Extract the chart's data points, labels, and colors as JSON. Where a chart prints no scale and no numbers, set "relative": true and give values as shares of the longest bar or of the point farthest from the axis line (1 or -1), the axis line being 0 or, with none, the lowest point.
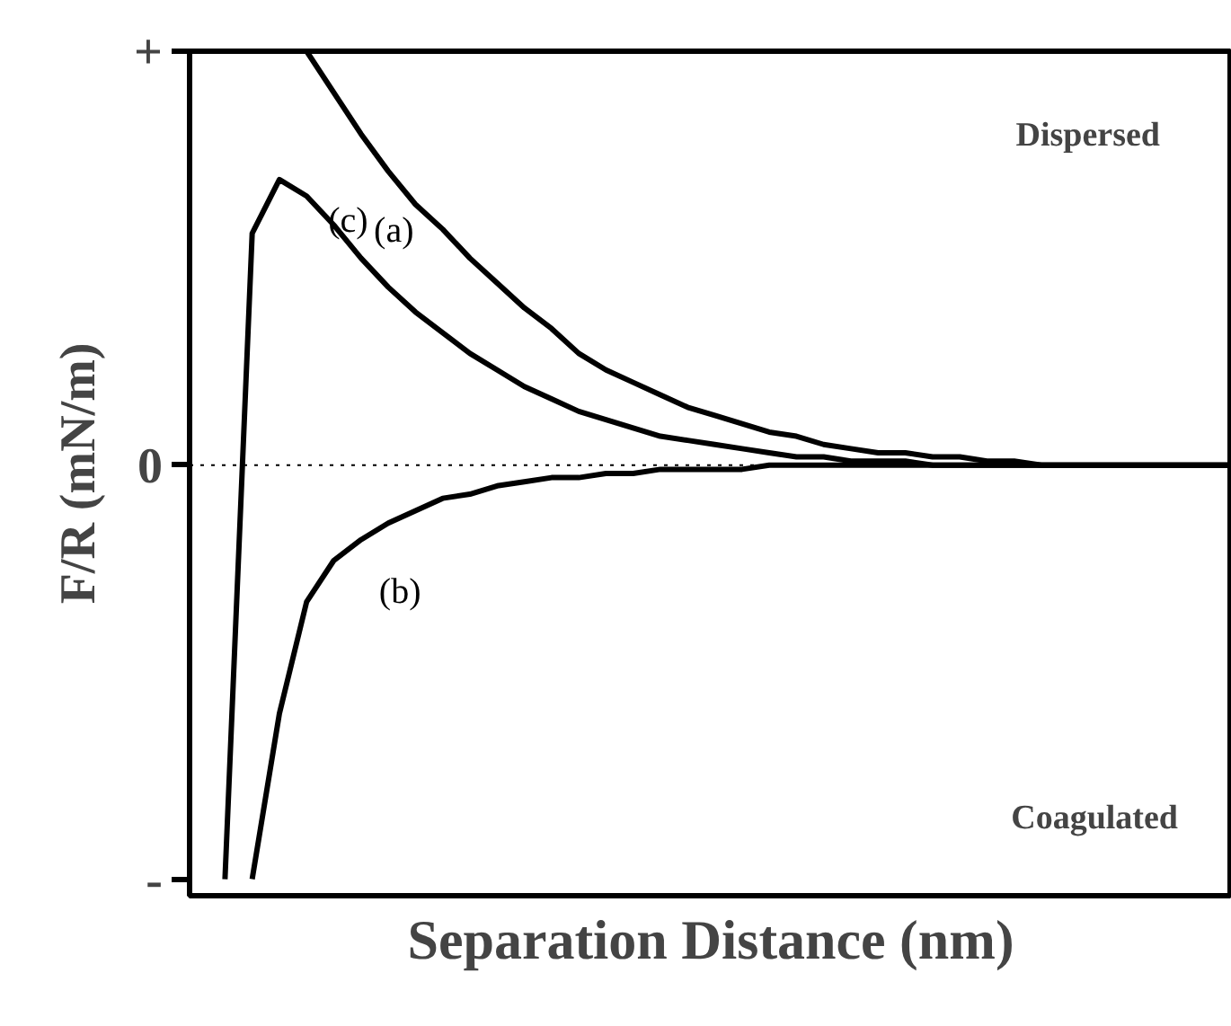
{
  "chart_data": {
    "type": "line",
    "relative": true,
    "xlabel": "Separation Distance (nm)",
    "ylabel": "F/R (mN/m)",
    "categories": [
      null,
      null,
      null,
      null,
      null,
      null,
      null,
      null,
      null,
      null,
      null,
      null,
      null,
      null,
      null,
      null,
      null,
      null,
      null,
      null,
      null,
      null,
      null,
      null,
      null,
      null,
      null,
      null,
      null,
      null,
      null,
      null,
      null,
      null,
      null,
      null,
      null,
      null,
      null
    ],
    "series": [
      {
        "name": "(a)",
        "color": "#000000",
        "values": [
          null,
          null,
          null,
          null,
          1.0,
          0.9,
          0.8,
          0.71,
          0.63,
          0.57,
          0.5,
          0.44,
          0.38,
          0.33,
          0.27,
          0.23,
          0.2,
          0.17,
          0.14,
          0.12,
          0.1,
          0.08,
          0.07,
          0.05,
          0.04,
          0.03,
          0.03,
          0.02,
          0.02,
          0.01,
          0.01,
          0,
          0,
          0,
          0,
          0,
          0,
          0,
          0
        ]
      },
      {
        "name": "(b)",
        "color": "#000000",
        "values": [
          null,
          null,
          -1.0,
          -0.6,
          -0.33,
          -0.23,
          -0.18,
          -0.14,
          -0.11,
          -0.08,
          -0.07,
          -0.05,
          -0.04,
          -0.03,
          -0.03,
          -0.02,
          -0.02,
          -0.01,
          -0.01,
          -0.01,
          -0.01,
          0,
          0,
          0,
          0,
          0,
          0,
          0,
          0,
          0,
          0,
          0,
          0,
          0,
          0,
          0,
          0,
          0,
          0
        ]
      },
      {
        "name": "(c)",
        "color": "#000000",
        "values": [
          null,
          -1.0,
          0.56,
          0.69,
          0.65,
          0.58,
          0.5,
          0.43,
          0.37,
          0.32,
          0.27,
          0.23,
          0.19,
          0.16,
          0.13,
          0.11,
          0.09,
          0.07,
          0.06,
          0.05,
          0.04,
          0.03,
          0.02,
          0.02,
          0.01,
          0.01,
          0.01,
          0,
          0,
          0,
          0,
          0,
          0,
          0,
          0,
          0,
          0,
          0,
          0
        ]
      }
    ],
    "ref_lines": [
      {
        "axis": "y",
        "value": 0,
        "label": "0",
        "color": "#000000",
        "line_style": "dotted"
      }
    ],
    "annotations": [
      "+",
      "-",
      "Dispersed",
      "Coagulated"
    ],
    "grid": false,
    "marker": "none",
    "line_style": "solid"
  }
}
